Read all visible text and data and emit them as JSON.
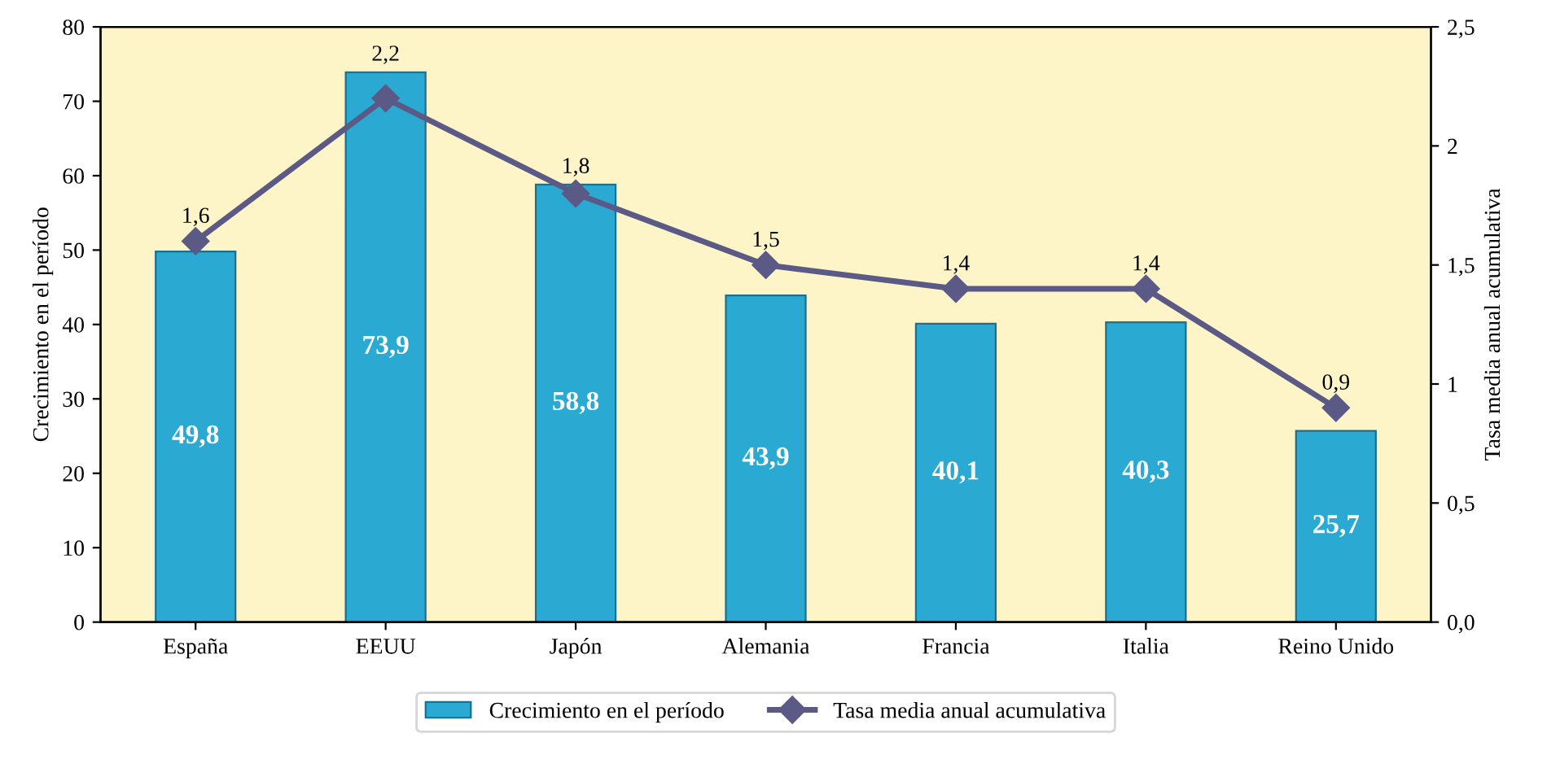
{
  "chart_data": {
    "type": "bar",
    "categories": [
      "España",
      "EEUU",
      "Japón",
      "Alemania",
      "Francia",
      "Italia",
      "Reino Unido"
    ],
    "ylabel": "Crecimiento en el período",
    "y2label": "Tasa media anual acumulativa",
    "series": [
      {
        "name": "Crecimiento en el período",
        "type": "bar",
        "color": "#2aa9d2",
        "values": [
          49.8,
          73.9,
          58.8,
          43.9,
          40.1,
          40.3,
          25.7
        ],
        "value_labels": [
          "49,8",
          "73,9",
          "58,8",
          "43,9",
          "40,1",
          "40,3",
          "25,7"
        ]
      },
      {
        "name": "Tasa media anual acumulativa",
        "type": "line",
        "axis": "y2",
        "color": "#5b5a86",
        "marker": "diamond",
        "values": [
          1.6,
          2.2,
          1.8,
          1.5,
          1.4,
          1.4,
          0.9
        ],
        "value_labels": [
          "1,6",
          "2,2",
          "1,8",
          "1,5",
          "1,4",
          "1,4",
          "0,9"
        ]
      }
    ],
    "ylim": [
      0,
      80
    ],
    "yticks": [
      0,
      10,
      20,
      30,
      40,
      50,
      60,
      70,
      80
    ],
    "y2lim": [
      0,
      2.5
    ],
    "y2ticks": [
      {
        "value": 0,
        "label": "0,0"
      },
      {
        "value": 0.5,
        "label": "0,5"
      },
      1,
      {
        "value": 1.5,
        "label": "1,5"
      },
      2,
      {
        "value": 2.5,
        "label": "2,5"
      }
    ],
    "grid": false,
    "legend": "bottom"
  }
}
